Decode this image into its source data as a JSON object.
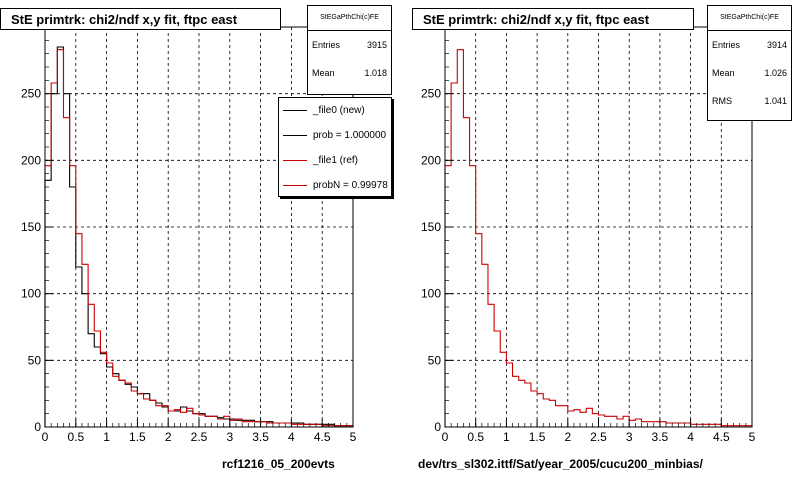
{
  "chart_data": [
    {
      "type": "bar",
      "title": "StE primtrk: chi2/ndf x,y fit, ftpc east",
      "xlim": [
        0,
        5
      ],
      "ylim": [
        0,
        300
      ],
      "xticks": [
        "0",
        "0.5",
        "1",
        "1.5",
        "2",
        "2.5",
        "3",
        "3.5",
        "4",
        "4.5",
        "5"
      ],
      "yticks": [
        "0",
        "50",
        "100",
        "150",
        "200",
        "250"
      ],
      "grid": true,
      "bin_width": 0.1,
      "series": [
        {
          "name": "_file0 (new)",
          "color": "#000000",
          "values": [
            185,
            250,
            285,
            250,
            180,
            120,
            100,
            70,
            60,
            55,
            45,
            40,
            35,
            32,
            30,
            25,
            25,
            20,
            18,
            15,
            12,
            12,
            15,
            12,
            10,
            10,
            8,
            8,
            7,
            6,
            6,
            5,
            5,
            5,
            4,
            4,
            4,
            3,
            3,
            3,
            3,
            3,
            2,
            2,
            2,
            2,
            2,
            1,
            1,
            1
          ]
        },
        {
          "name": "_file1 (ref)",
          "color": "#cc0000",
          "values": [
            196,
            258,
            283,
            232,
            196,
            145,
            122,
            92,
            72,
            56,
            48,
            38,
            35,
            33,
            27,
            25,
            21,
            20,
            16,
            16,
            12,
            13,
            11,
            14,
            10,
            9,
            8,
            8,
            6,
            8,
            5,
            6,
            4,
            4,
            4,
            4,
            3,
            3,
            3,
            3,
            2,
            2,
            2,
            2,
            2,
            1,
            1,
            1,
            1,
            1
          ]
        }
      ],
      "stats": {
        "header": "StEGaPthChi(c)FE",
        "entries_label": "Entries",
        "entries": "3915",
        "mean_label": "Mean",
        "mean": "1.018"
      },
      "legend": {
        "placement": "top-right",
        "items": [
          {
            "text": "_file0 (new)",
            "color": "#000000"
          },
          {
            "text": "prob = 1.000000",
            "color": "#000000"
          },
          {
            "text": "_file1 (ref)",
            "color": "#cc0000"
          },
          {
            "text": "probN = 0.99978",
            "color": "#cc0000"
          }
        ]
      },
      "footer": "rcf1216_05_200evts"
    },
    {
      "type": "bar",
      "title": "StE primtrk: chi2/ndf x,y fit, ftpc east",
      "xlim": [
        0,
        5
      ],
      "ylim": [
        0,
        300
      ],
      "xticks": [
        "0",
        "0.5",
        "1",
        "1.5",
        "2",
        "2.5",
        "3",
        "3.5",
        "4",
        "4.5",
        "5"
      ],
      "yticks": [
        "0",
        "50",
        "100",
        "150",
        "200",
        "250"
      ],
      "grid": true,
      "bin_width": 0.1,
      "series": [
        {
          "name": "",
          "color": "#cc0000",
          "values": [
            196,
            258,
            283,
            232,
            196,
            145,
            122,
            92,
            72,
            56,
            48,
            38,
            35,
            33,
            27,
            25,
            21,
            20,
            16,
            16,
            12,
            13,
            11,
            14,
            10,
            9,
            8,
            8,
            6,
            8,
            5,
            6,
            4,
            4,
            4,
            4,
            3,
            3,
            3,
            3,
            2,
            2,
            2,
            2,
            2,
            1,
            1,
            1,
            1,
            1
          ]
        }
      ],
      "stats": {
        "header": "StEGaPthChi(c)FE",
        "entries_label": "Entries",
        "entries": "3914",
        "mean_label": "Mean",
        "mean": "1.026",
        "rms_label": "RMS",
        "rms": "1.041"
      },
      "footer": "dev/trs_sl302.ittf/Sat/year_2005/cucu200_minbias/"
    }
  ]
}
